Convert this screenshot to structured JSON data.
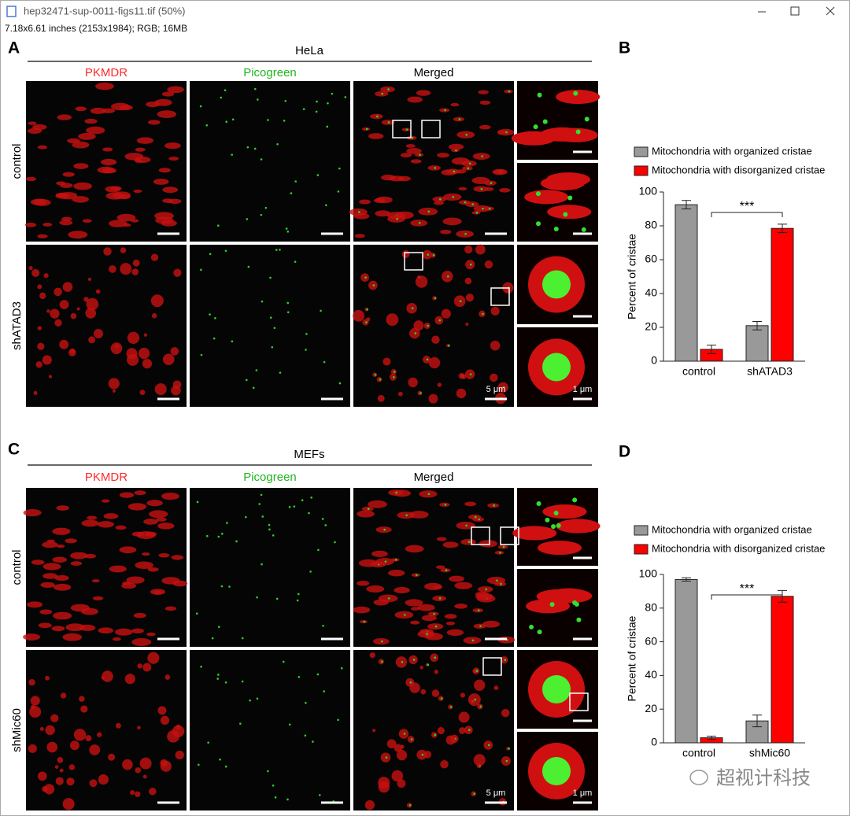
{
  "window": {
    "title": "hep32471-sup-0011-figs11.tif (50%)",
    "info": "7.18x6.61 inches (2153x1984); RGB; 16MB"
  },
  "figure": {
    "panels": [
      {
        "label": "A",
        "cell_line": "HeLa",
        "columns": [
          "PKMDR",
          "Picogreen",
          "Merged"
        ],
        "rows": [
          "control",
          "shATAD3"
        ],
        "scale_bars": [
          "5 μm",
          "1 μm"
        ]
      },
      {
        "label": "C",
        "cell_line": "MEFs",
        "columns": [
          "PKMDR",
          "Picogreen",
          "Merged"
        ],
        "rows": [
          "control",
          "shMic60"
        ],
        "scale_bars": [
          "5 μm",
          "1 μm"
        ]
      }
    ],
    "watermark": "超视计科技"
  },
  "chart_data": [
    {
      "type": "bar",
      "label": "B",
      "ylabel": "Percent of cristae",
      "categories": [
        "control",
        "shATAD3"
      ],
      "series": [
        {
          "name": "Mitochondria with organized cristae",
          "color": "#999999",
          "values": [
            92.5,
            21
          ],
          "errors": [
            2.5,
            2.5
          ]
        },
        {
          "name": "Mitochondria with disorganized cristae",
          "color": "#ff0000",
          "values": [
            7,
            78.5
          ],
          "errors": [
            2.5,
            2.5
          ]
        }
      ],
      "ylim": [
        0,
        100
      ],
      "yticks": [
        0,
        20,
        40,
        60,
        80,
        100
      ],
      "annotation": "***"
    },
    {
      "type": "bar",
      "label": "D",
      "ylabel": "Percent of cristae",
      "categories": [
        "control",
        "shMic60"
      ],
      "series": [
        {
          "name": "Mitochondria with organized cristae",
          "color": "#999999",
          "values": [
            97,
            13
          ],
          "errors": [
            1,
            3.5
          ]
        },
        {
          "name": "Mitochondria with disorganized cristae",
          "color": "#ff0000",
          "values": [
            3,
            87
          ],
          "errors": [
            1,
            3.5
          ]
        }
      ],
      "ylim": [
        0,
        100
      ],
      "yticks": [
        0,
        20,
        40,
        60,
        80,
        100
      ],
      "annotation": "***"
    }
  ]
}
